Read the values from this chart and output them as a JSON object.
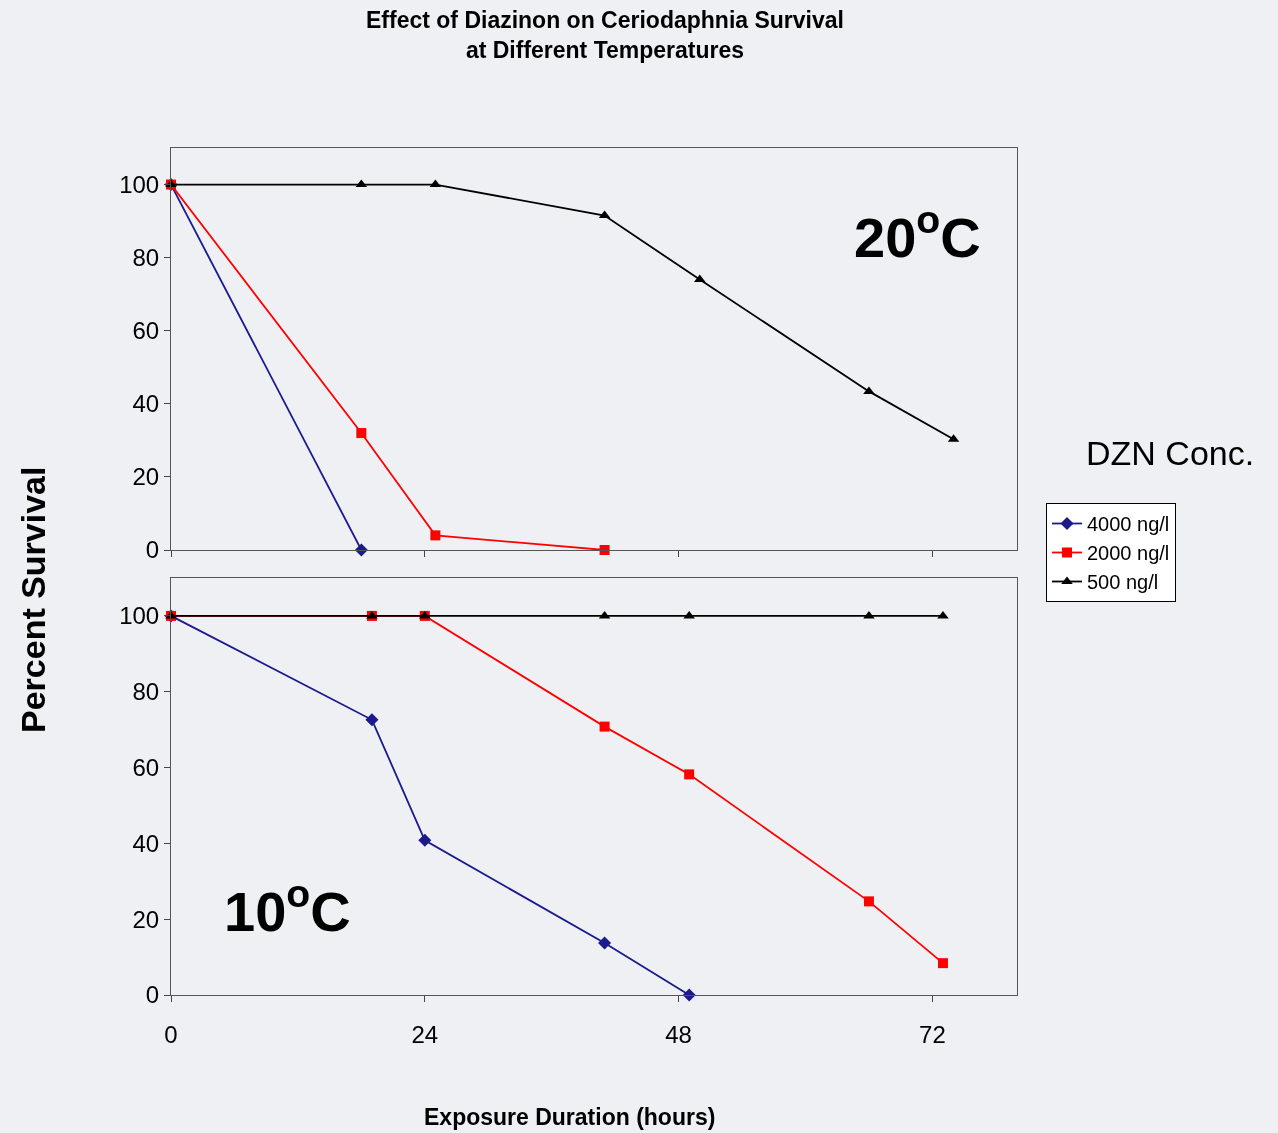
{
  "chart_data": [
    {
      "type": "line",
      "title": "Effect of Diazinon on Ceriodaphnia Survival\nat Different Temperatures",
      "ylabel": "Percent Survival",
      "legend_title": "DZN Conc.",
      "legend": "right",
      "tick_labels": "y",
      "grid": false,
      "xlim": [
        0,
        80
      ],
      "xticks": [
        {
          "value": 0,
          "label": null
        },
        {
          "value": 24,
          "label": null
        },
        {
          "value": 48,
          "label": null
        },
        {
          "value": 72,
          "label": null
        }
      ],
      "ylim": [
        0,
        110
      ],
      "yticks": [
        0,
        20,
        40,
        60,
        80,
        100
      ],
      "annotations": [
        "20$^{o}$C"
      ],
      "series": [
        {
          "name": "4000 ng/l",
          "color": "#1a1a8c",
          "marker": "diamond",
          "x": [
            0,
            18
          ],
          "values": [
            100,
            0
          ]
        },
        {
          "name": "2000 ng/l",
          "color": "#ff0000",
          "marker": "square",
          "x": [
            0,
            18,
            25,
            41
          ],
          "values": [
            100,
            32,
            4,
            0
          ]
        },
        {
          "name": "500 ng/l",
          "color": "#000000",
          "marker": "triangle",
          "x": [
            0,
            18,
            25,
            41,
            50,
            66,
            74
          ],
          "values": [
            100,
            100,
            100,
            91.5,
            74,
            43.4,
            30.3
          ]
        }
      ]
    },
    {
      "type": "line",
      "xlabel": "Exposure Duration (hours)",
      "grid": false,
      "xlim": [
        0,
        80
      ],
      "xticks": [
        0,
        24,
        48,
        72
      ],
      "ylim": [
        0,
        110
      ],
      "yticks": [
        0,
        20,
        40,
        60,
        80,
        100
      ],
      "annotations": [
        "10$^{o}$C"
      ],
      "series": [
        {
          "color": "#1a1a8c",
          "marker": "diamond",
          "x": [
            0,
            19,
            24,
            41,
            49
          ],
          "values": [
            100,
            72.6,
            40.8,
            13.7,
            0
          ]
        },
        {
          "color": "#ff0000",
          "marker": "square",
          "x": [
            0,
            19,
            24,
            41,
            49,
            66,
            73
          ],
          "values": [
            100,
            100,
            100,
            70.8,
            58.2,
            24.7,
            8.4
          ]
        },
        {
          "color": "#000000",
          "marker": "triangle",
          "x": [
            0,
            19,
            24,
            41,
            49,
            66,
            73
          ],
          "values": [
            100,
            100,
            100,
            100,
            100,
            100,
            100
          ]
        }
      ]
    }
  ]
}
